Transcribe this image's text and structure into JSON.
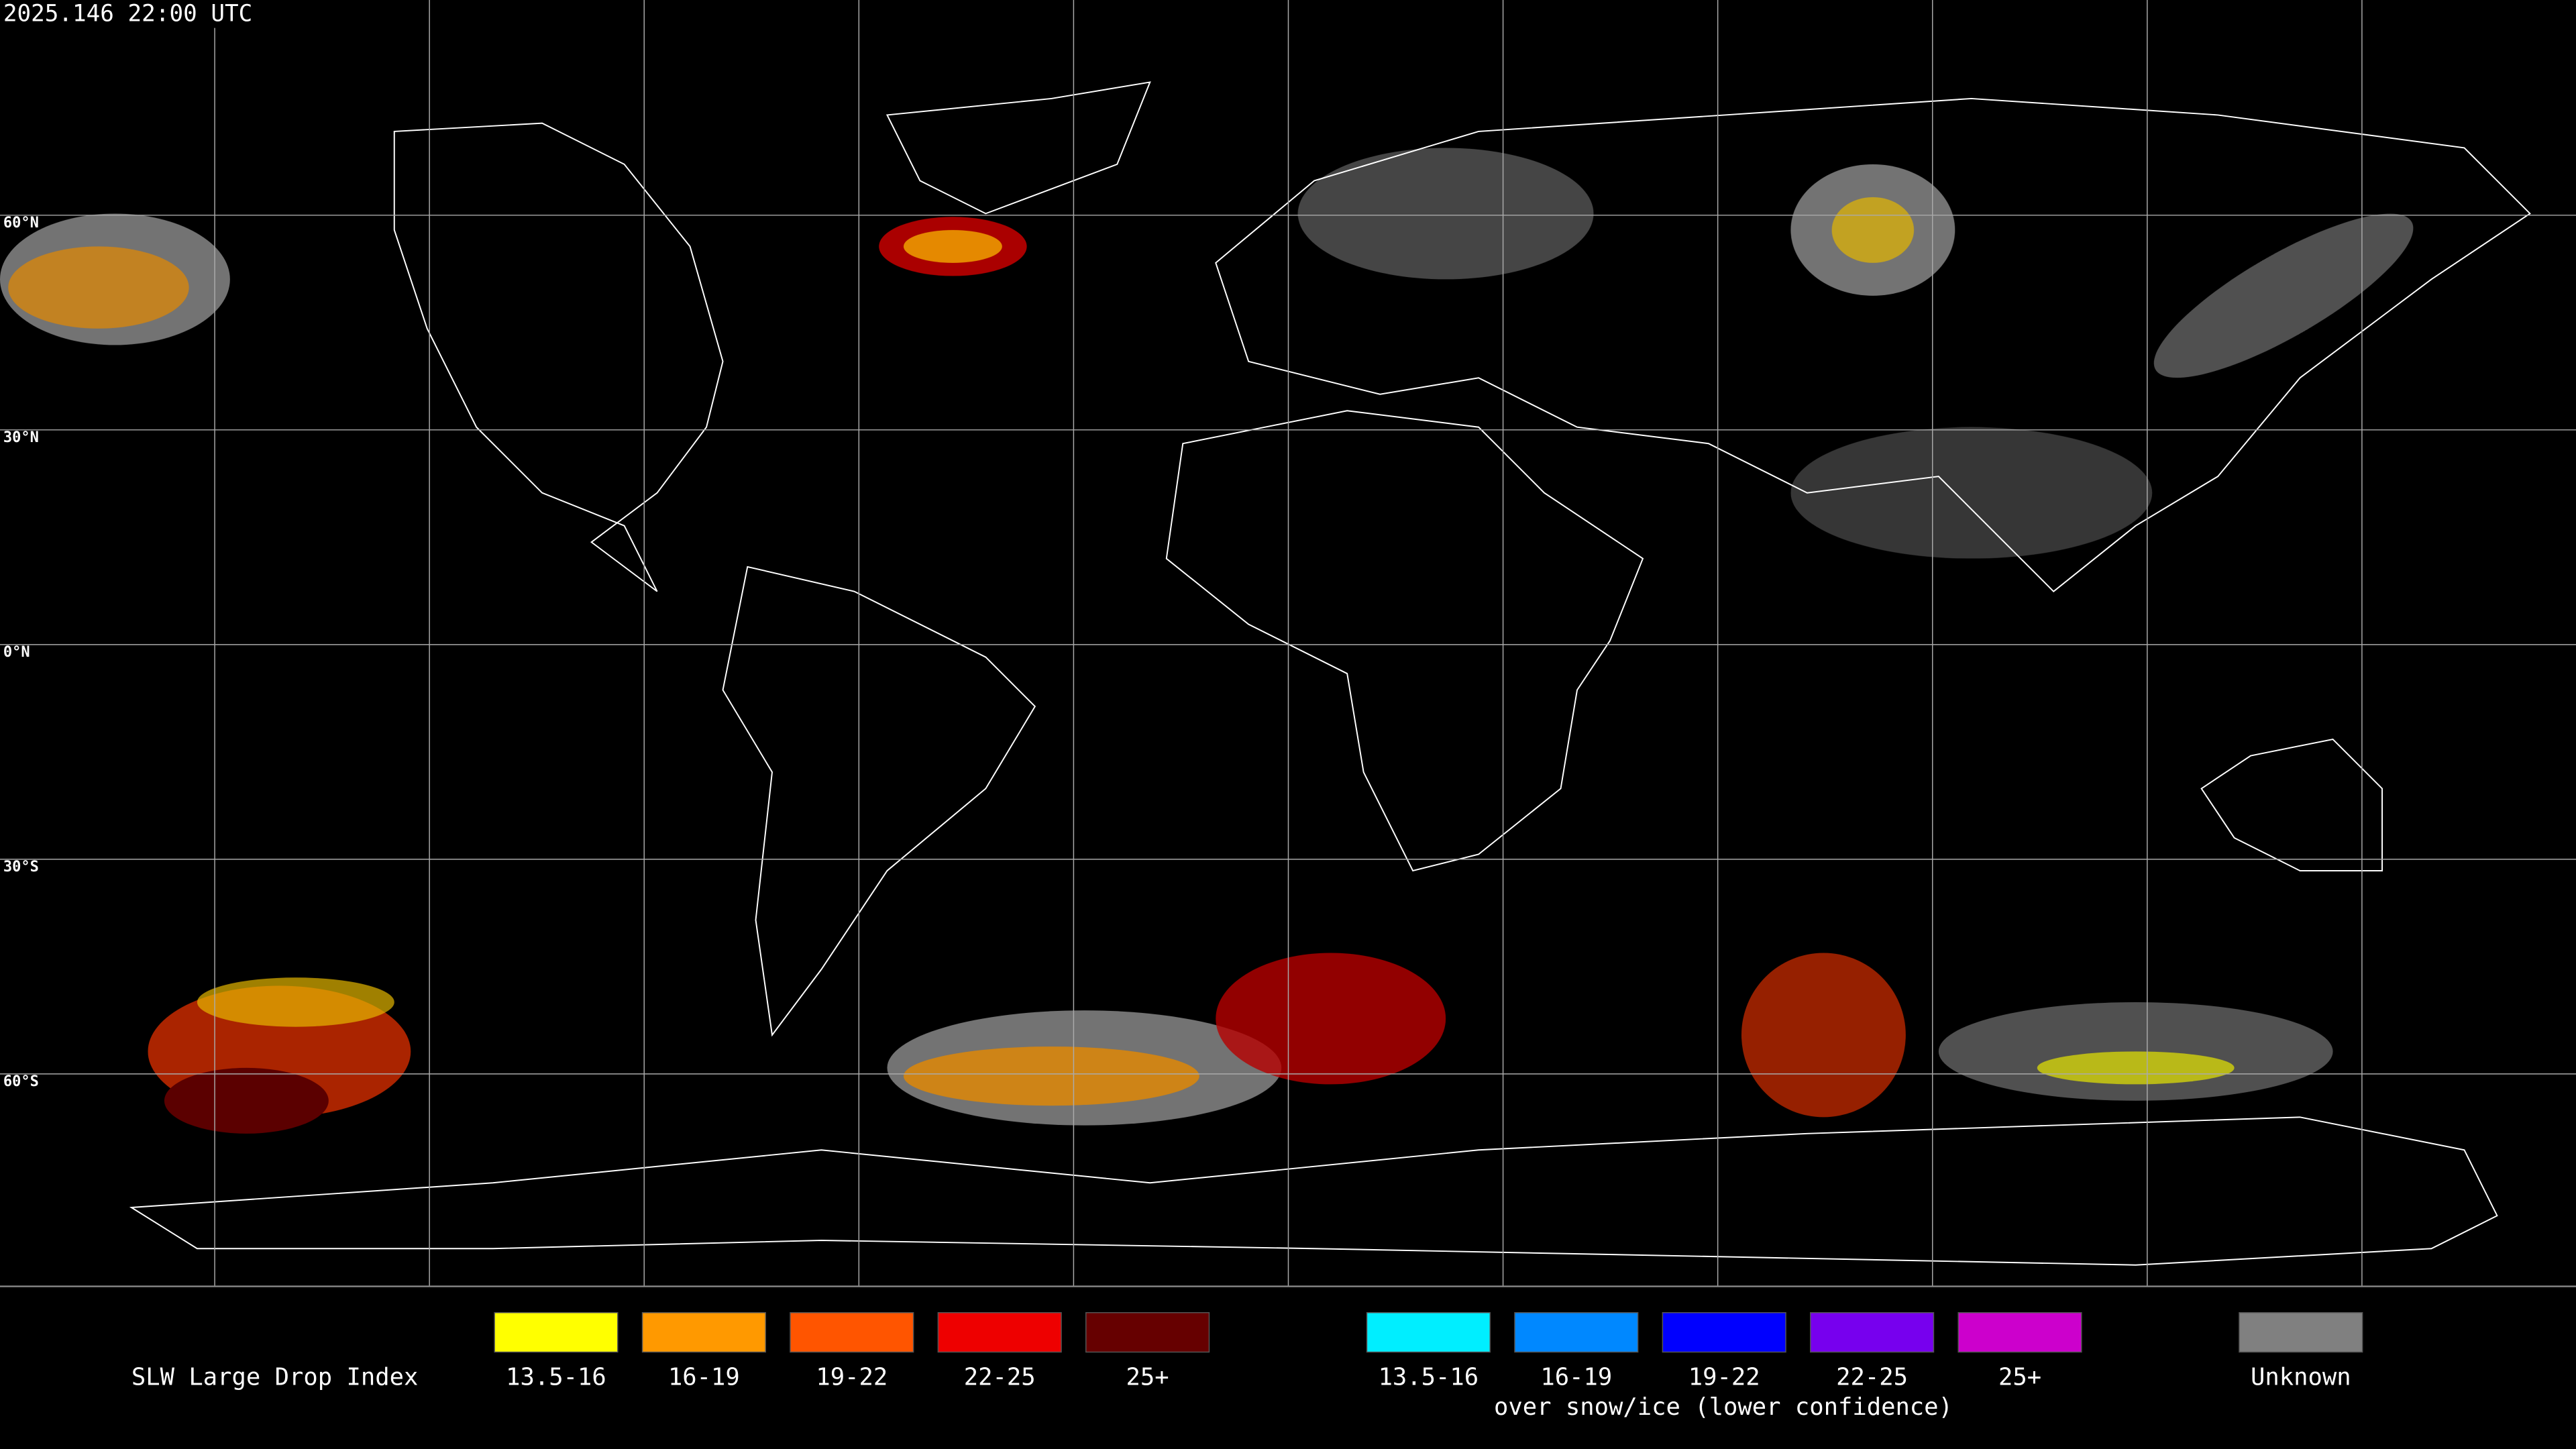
{
  "header": {
    "timestamp": "2025.146 22:00 UTC"
  },
  "map": {
    "lat_labels": [
      "60°N",
      "30°N",
      "0°N",
      "30°S",
      "60°S"
    ]
  },
  "legend": {
    "title": "SLW Large Drop Index",
    "normal": [
      {
        "label": "13.5-16",
        "color": "#ffff00"
      },
      {
        "label": "16-19",
        "color": "#ff9900"
      },
      {
        "label": "19-22",
        "color": "#ff5500"
      },
      {
        "label": "22-25",
        "color": "#ee0000"
      },
      {
        "label": "25+",
        "color": "#660000"
      }
    ],
    "snow_ice": [
      {
        "label": "13.5-16",
        "color": "#00eeff"
      },
      {
        "label": "16-19",
        "color": "#0088ff"
      },
      {
        "label": "19-22",
        "color": "#0000ff"
      },
      {
        "label": "22-25",
        "color": "#7700ee"
      },
      {
        "label": "25+",
        "color": "#cc00cc"
      }
    ],
    "snow_ice_note": "over snow/ice (lower confidence)",
    "unknown": {
      "label": "Unknown",
      "color": "#808080"
    }
  }
}
